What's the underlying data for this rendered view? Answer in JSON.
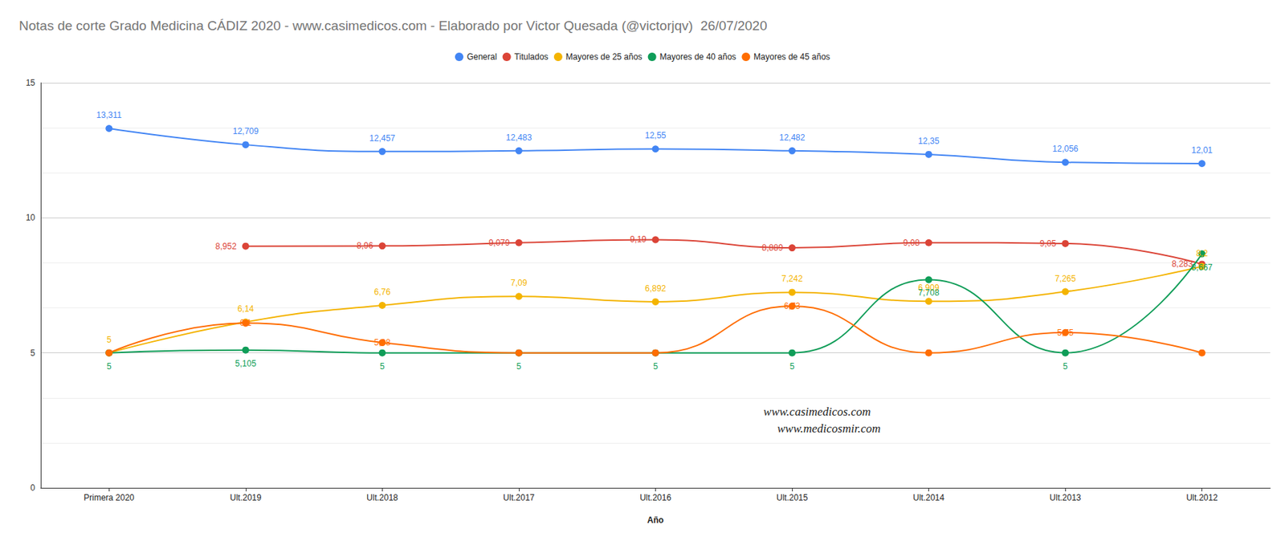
{
  "chart_data": {
    "type": "line",
    "title": "Notas de corte Grado Medicina CÁDIZ 2020 - www.casimedicos.com - Elaborado por Victor Quesada (@victorjqv)  26/07/2020",
    "x_label": "Año",
    "categories": [
      "Primera 2020",
      "Ult.2019",
      "Ult.2018",
      "Ult.2017",
      "Ult.2016",
      "Ult.2015",
      "Ult.2014",
      "Ult.2013",
      "Ult.2012"
    ],
    "series": [
      {
        "name": "General",
        "color": "#4285f4",
        "values": [
          13.311,
          12.709,
          12.457,
          12.483,
          12.55,
          12.482,
          12.35,
          12.056,
          12.01
        ],
        "value_labels": [
          "13,311",
          "12,709",
          "12,457",
          "12,483",
          "12,55",
          "12,482",
          "12,35",
          "12,056",
          "12,01"
        ]
      },
      {
        "name": "Titulados",
        "color": "#db4437",
        "values": [
          null,
          8.952,
          8.96,
          9.079,
          9.19,
          8.889,
          9.08,
          9.05,
          8.283
        ],
        "value_labels": [
          null,
          "8,952",
          "8,96",
          "9,079",
          "9,19",
          "8,889",
          "9,08",
          "9,05",
          "8,283"
        ]
      },
      {
        "name": "Mayores de 25 años",
        "color": "#f4b400",
        "values": [
          5,
          6.14,
          6.76,
          7.09,
          6.892,
          7.242,
          6.909,
          7.265,
          8.2
        ],
        "value_labels": [
          "5",
          "6,14",
          "6,76",
          "7,09",
          "6,892",
          "7,242",
          "6,909",
          "7,265",
          "8,2"
        ]
      },
      {
        "name": "Mayores de 40 años",
        "color": "#0f9d58",
        "values": [
          5,
          5.105,
          5,
          5,
          5,
          5,
          7.708,
          5,
          8.667
        ],
        "value_labels": [
          "5",
          "5,105",
          "5",
          "5",
          "5",
          "5",
          "7,708",
          "5",
          "8,667"
        ]
      },
      {
        "name": "Mayores de 45 años",
        "color": "#ff6d01",
        "values": [
          5,
          6.1,
          5.38,
          5,
          5,
          6.73,
          5,
          5.75,
          5
        ],
        "value_labels": [
          "5",
          "6,1",
          "5,38",
          "5",
          "5",
          "6,73",
          "5",
          "5,75",
          "5"
        ]
      }
    ],
    "ylim": [
      0,
      15
    ],
    "yticks": [
      0,
      5,
      10,
      15
    ],
    "grid": true,
    "legend": "top",
    "data_labels": true,
    "line_style": "smooth",
    "marker": "circle",
    "annotations": [
      "www.casimedicos.com",
      "www.medicosmir.com"
    ]
  }
}
